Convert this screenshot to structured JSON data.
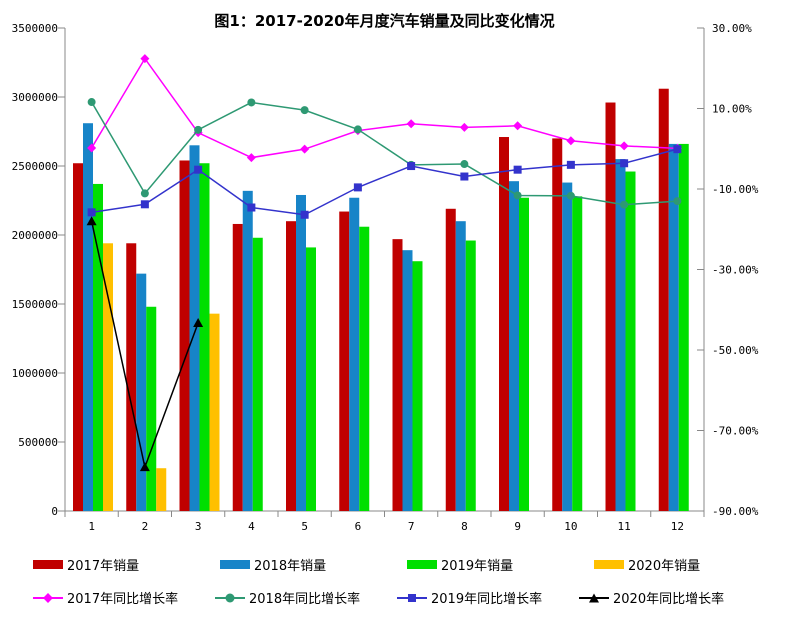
{
  "title": "图1：2017-2020年月度汽车销量及同比变化情况",
  "chart_data": {
    "type": "bar+line",
    "categories": [
      "1",
      "2",
      "3",
      "4",
      "5",
      "6",
      "7",
      "8",
      "9",
      "10",
      "11",
      "12"
    ],
    "bar_series": [
      {
        "name": "2017年销量",
        "color": "#C00000",
        "values": [
          2520000,
          1940000,
          2540000,
          2080000,
          2100000,
          2170000,
          1970000,
          2190000,
          2710000,
          2700000,
          2960000,
          3060000
        ]
      },
      {
        "name": "2018年销量",
        "color": "#1784C8",
        "values": [
          2810000,
          1720000,
          2650000,
          2320000,
          2290000,
          2270000,
          1890000,
          2100000,
          2390000,
          2380000,
          2550000,
          2660000
        ]
      },
      {
        "name": "2019年销量",
        "color": "#00DF00",
        "values": [
          2370000,
          1480000,
          2520000,
          1980000,
          1910000,
          2060000,
          1810000,
          1960000,
          2270000,
          2280000,
          2460000,
          2660000
        ]
      },
      {
        "name": "2020年销量",
        "color": "#FFC000",
        "values": [
          1940000,
          310000,
          1430000,
          null,
          null,
          null,
          null,
          null,
          null,
          null,
          null,
          null
        ]
      }
    ],
    "line_series": [
      {
        "name": "2017年同比增长率",
        "color": "#FF00FF",
        "marker": "diamond",
        "values": [
          0.2,
          22.4,
          4.0,
          -2.2,
          -0.1,
          4.5,
          6.2,
          5.3,
          5.7,
          2.0,
          0.7,
          0.1
        ]
      },
      {
        "name": "2018年同比增长率",
        "color": "#2E9973",
        "marker": "circle",
        "values": [
          11.6,
          -11.1,
          4.7,
          11.5,
          9.6,
          4.8,
          -4.0,
          -3.8,
          -11.6,
          -11.7,
          -13.9,
          -13.0
        ]
      },
      {
        "name": "2019年同比增长率",
        "color": "#3333CC",
        "marker": "square",
        "values": [
          -15.8,
          -13.8,
          -5.2,
          -14.6,
          -16.4,
          -9.6,
          -4.3,
          -6.9,
          -5.2,
          -4.0,
          -3.6,
          -0.1
        ]
      },
      {
        "name": "2020年同比增长率",
        "color": "#000000",
        "marker": "triangle",
        "values": [
          -18.0,
          -79.1,
          -43.3,
          null,
          null,
          null,
          null,
          null,
          null,
          null,
          null,
          null
        ]
      }
    ],
    "left_axis": {
      "min": 0,
      "max": 3500000,
      "tick_labels": [
        "3500000",
        "3000000",
        "2500000",
        "2000000",
        "1500000",
        "1000000",
        "500000",
        "0"
      ]
    },
    "right_axis": {
      "min": -90,
      "max": 30,
      "tick_labels": [
        "30.00%",
        "10.00%",
        "-10.00%",
        "-30.00%",
        "-50.00%",
        "-70.00%",
        "-90.00%"
      ]
    },
    "grid": false,
    "legend_position": "bottom"
  }
}
